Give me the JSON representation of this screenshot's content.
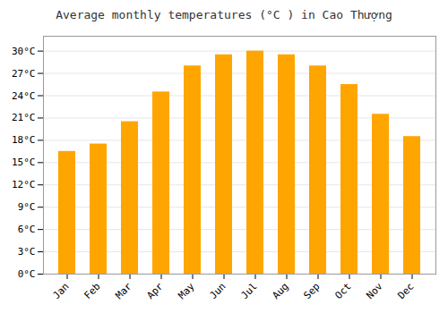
{
  "chart_data": {
    "type": "bar",
    "title": "Average monthly temperatures (°C ) in Cao Thượng",
    "categories": [
      "Jan",
      "Feb",
      "Mar",
      "Apr",
      "May",
      "Jun",
      "Jul",
      "Aug",
      "Sep",
      "Oct",
      "Nov",
      "Dec"
    ],
    "values": [
      16.5,
      17.5,
      20.5,
      24.5,
      28.0,
      29.5,
      30.0,
      29.5,
      28.0,
      25.5,
      21.5,
      18.5
    ],
    "color": "#FFA500",
    "ylim": [
      0,
      32
    ],
    "yticks": [
      {
        "value": 0,
        "label": "0°C"
      },
      {
        "value": 3,
        "label": "3°C"
      },
      {
        "value": 6,
        "label": "6°C"
      },
      {
        "value": 9,
        "label": "9°C"
      },
      {
        "value": 12,
        "label": "12°C"
      },
      {
        "value": 15,
        "label": "15°C"
      },
      {
        "value": 18,
        "label": "18°C"
      },
      {
        "value": 21,
        "label": "21°C"
      },
      {
        "value": 24,
        "label": "24°C"
      },
      {
        "value": 27,
        "label": "27°C"
      },
      {
        "value": 30,
        "label": "30°C"
      }
    ],
    "grid": true
  }
}
